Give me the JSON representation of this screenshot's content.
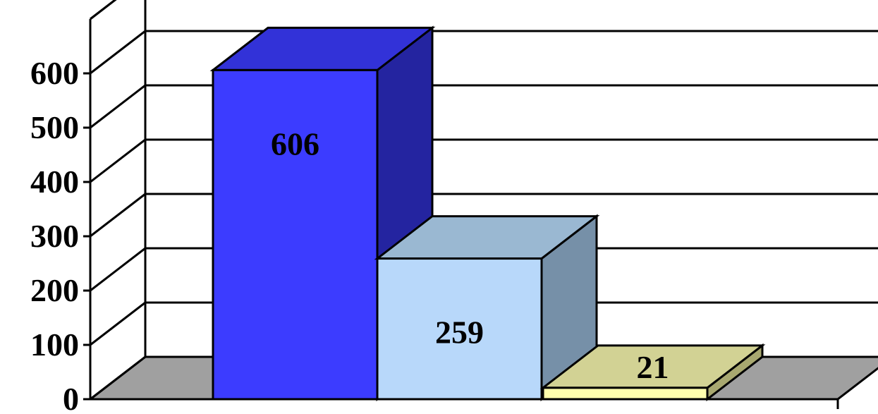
{
  "chart_data": {
    "type": "bar",
    "style": "3d-column",
    "categories": [
      "",
      "",
      ""
    ],
    "values": [
      606,
      259,
      21
    ],
    "value_labels": [
      "606",
      "259",
      "21"
    ],
    "bar_colors": [
      "#3c3cff",
      "#b8d8fa",
      "#fefead"
    ],
    "bar_top_colors": [
      "#3232d8",
      "#9ab8d2",
      "#d2d294"
    ],
    "bar_side_colors": [
      "#2424a0",
      "#7690a8",
      "#a8a870"
    ],
    "ylim": [
      0,
      700
    ],
    "yticks": [
      0,
      100,
      200,
      300,
      400,
      500,
      600
    ],
    "ytick_labels": [
      "0",
      "100",
      "200",
      "300",
      "400",
      "500",
      "600"
    ],
    "grid": true,
    "floor_color": "#a0a0a0",
    "title": "",
    "xlabel": "",
    "ylabel": ""
  }
}
